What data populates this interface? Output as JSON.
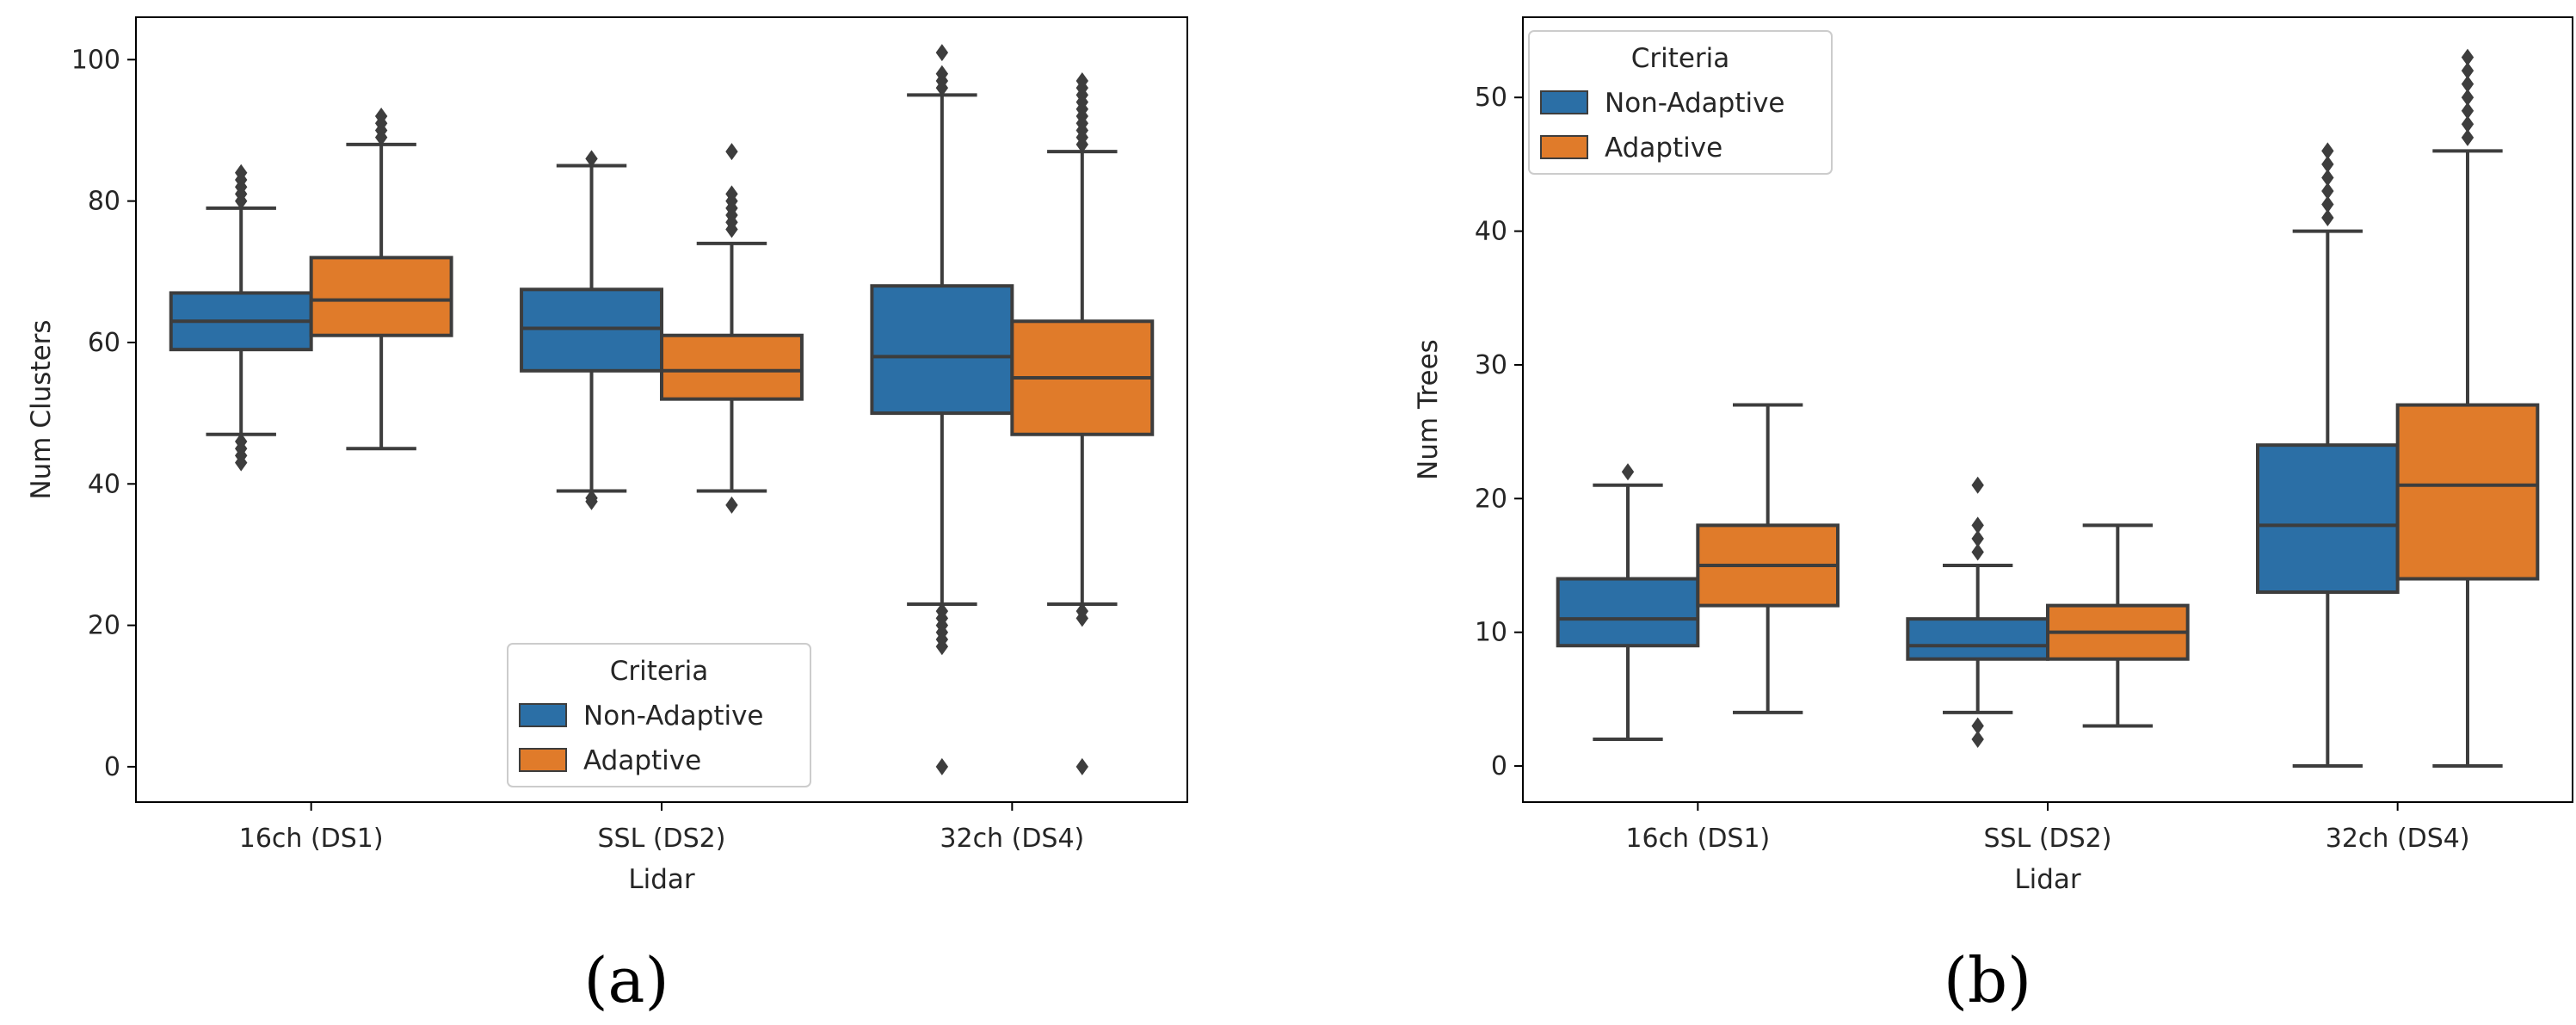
{
  "panel_labels": [
    "(a)",
    "(b)"
  ],
  "colors": {
    "Non-Adaptive": "#2b6fa6",
    "Adaptive": "#e07b2a",
    "line": "#3d3d3d"
  },
  "chart_data": [
    {
      "type": "box",
      "xlabel": "Lidar",
      "ylabel": "Num Clusters",
      "ylim": [
        -5,
        106
      ],
      "yticks": [
        0,
        20,
        40,
        60,
        80,
        100
      ],
      "categories": [
        "16ch (DS1)",
        "SSL (DS2)",
        "32ch (DS4)"
      ],
      "legend": {
        "title": "Criteria",
        "entries": [
          "Non-Adaptive",
          "Adaptive"
        ],
        "placement": "lower-center"
      },
      "series": [
        {
          "name": "Non-Adaptive",
          "boxes": [
            {
              "q1": 59,
              "median": 63,
              "q3": 67,
              "whisker_low": 47,
              "whisker_high": 79,
              "outliers": [
                43,
                44,
                45,
                46,
                80,
                81,
                82,
                83,
                84
              ]
            },
            {
              "q1": 56,
              "median": 62,
              "q3": 67.5,
              "whisker_low": 39,
              "whisker_high": 85,
              "outliers": [
                37.5,
                38,
                86
              ]
            },
            {
              "q1": 50,
              "median": 58,
              "q3": 68,
              "whisker_low": 23,
              "whisker_high": 95,
              "outliers": [
                0,
                17,
                18,
                19,
                20,
                21,
                22,
                96,
                97,
                98,
                101
              ]
            }
          ]
        },
        {
          "name": "Adaptive",
          "boxes": [
            {
              "q1": 61,
              "median": 66,
              "q3": 72,
              "whisker_low": 45,
              "whisker_high": 88,
              "outliers": [
                89,
                90,
                91,
                92
              ]
            },
            {
              "q1": 52,
              "median": 56,
              "q3": 61,
              "whisker_low": 39,
              "whisker_high": 74,
              "outliers": [
                37,
                76,
                77,
                78,
                79,
                80,
                81,
                87
              ]
            },
            {
              "q1": 47,
              "median": 55,
              "q3": 63,
              "whisker_low": 23,
              "whisker_high": 87,
              "outliers": [
                0,
                21,
                22,
                88,
                89,
                90,
                91,
                92,
                93,
                94,
                95,
                96,
                97
              ]
            }
          ]
        }
      ]
    },
    {
      "type": "box",
      "xlabel": "Lidar",
      "ylabel": "Num Trees",
      "ylim": [
        -2.7,
        56
      ],
      "yticks": [
        0,
        10,
        20,
        30,
        40,
        50
      ],
      "categories": [
        "16ch (DS1)",
        "SSL (DS2)",
        "32ch (DS4)"
      ],
      "legend": {
        "title": "Criteria",
        "entries": [
          "Non-Adaptive",
          "Adaptive"
        ],
        "placement": "upper-left"
      },
      "series": [
        {
          "name": "Non-Adaptive",
          "boxes": [
            {
              "q1": 9,
              "median": 11,
              "q3": 14,
              "whisker_low": 2,
              "whisker_high": 21,
              "outliers": [
                22
              ]
            },
            {
              "q1": 8,
              "median": 9,
              "q3": 11,
              "whisker_low": 4,
              "whisker_high": 15,
              "outliers": [
                2,
                3,
                16,
                17,
                18,
                21
              ]
            },
            {
              "q1": 13,
              "median": 18,
              "q3": 24,
              "whisker_low": 0,
              "whisker_high": 40,
              "outliers": [
                41,
                42,
                43,
                44,
                45,
                46
              ]
            }
          ]
        },
        {
          "name": "Adaptive",
          "boxes": [
            {
              "q1": 12,
              "median": 15,
              "q3": 18,
              "whisker_low": 4,
              "whisker_high": 27,
              "outliers": []
            },
            {
              "q1": 8,
              "median": 10,
              "q3": 12,
              "whisker_low": 3,
              "whisker_high": 18,
              "outliers": []
            },
            {
              "q1": 14,
              "median": 21,
              "q3": 27,
              "whisker_low": 0,
              "whisker_high": 46,
              "outliers": [
                47,
                48,
                49,
                50,
                51,
                52,
                53
              ]
            }
          ]
        }
      ]
    }
  ]
}
